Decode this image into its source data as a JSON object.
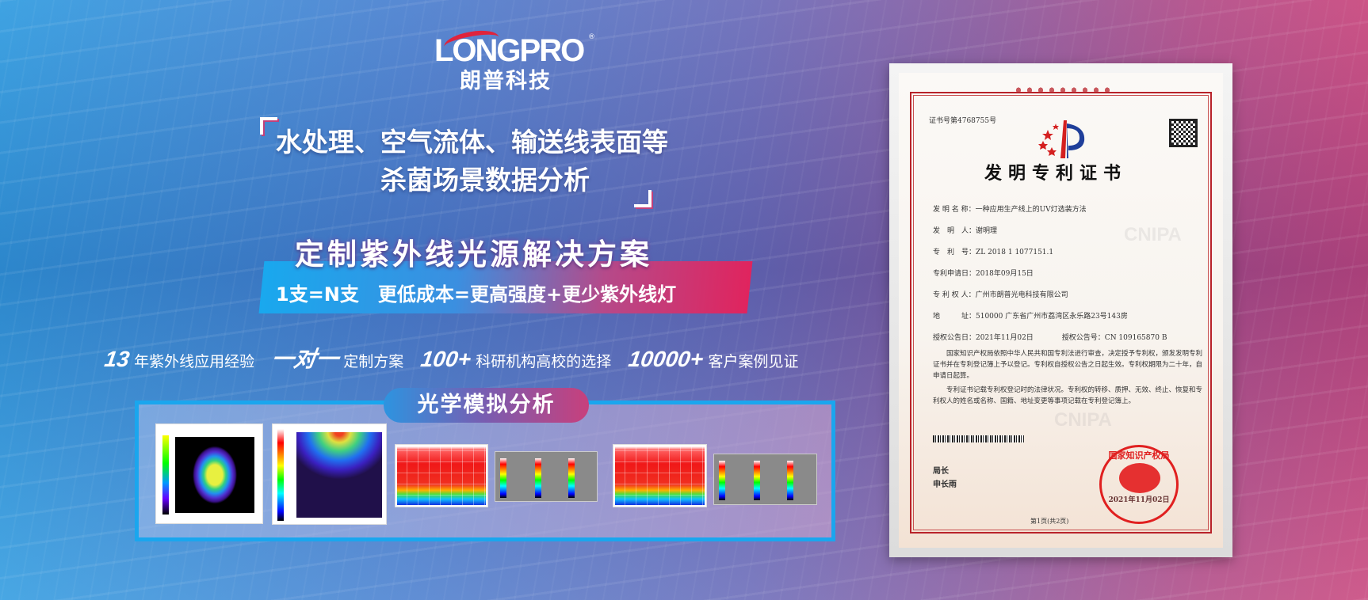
{
  "brand": {
    "name_en": "LONGPRO",
    "registered": "®",
    "name_cn": "朗普科技",
    "accent_red": "#e0233c"
  },
  "headline": {
    "line1": "水处理、空气流体、输送线表面等",
    "line2": "杀菌场景数据分析"
  },
  "banner": {
    "title": "定制紫外线光源解决方案",
    "subtitle": "1支=N支　更低成本=更高强度+更少紫外线灯",
    "colors": [
      "#19a8ee",
      "#e0245e"
    ]
  },
  "stats": [
    {
      "value": "13",
      "label": "年紫外线应用经验"
    },
    {
      "value": "一对一",
      "label": "定制方案"
    },
    {
      "value": "100+",
      "label": "科研机构高校的选择"
    },
    {
      "value": "10000+",
      "label": "客户案例见证"
    }
  ],
  "simulation": {
    "title": "光学模拟分析",
    "images": [
      "irradiance-map-circular",
      "irradiance-map-scatter",
      "heatmap-red-1",
      "color-legends-1",
      "heatmap-red-2",
      "color-legends-2"
    ]
  },
  "certificate": {
    "cert_no": "证书号第4768755号",
    "title": "发明专利证书",
    "watermark": "CNIPA",
    "rows": [
      "发 明 名 称：一种应用生产线上的UV灯选装方法",
      "发　明　人：谢明理",
      "专　利　号：ZL 2018 1 1077151.1",
      "专利申请日：2018年09月15日",
      "专 利 权 人：广州市朗普光电科技有限公司",
      "地　　　址：510000 广东省广州市荔湾区永乐路23号143房",
      "授权公告日：2021年11月02日　　　　授权公告号：CN 109165870 B"
    ],
    "paragraph1": "国家知识产权局依照中华人民共和国专利法进行审查，决定授予专利权，颁发发明专利证书并在专利登记簿上予以登记。专利权自授权公告之日起生效。专利权期限为二十年，自申请日起算。",
    "paragraph2": "专利证书记载专利权登记时的法律状况。专利权的转移、质押、无效、终止、恢复和专利权人的姓名或名称、国籍、地址变更等事项记载在专利登记簿上。",
    "director_title": "局长",
    "director_name": "申长雨",
    "signature": "申长雨",
    "seal_text": "国家知识产权局",
    "seal_date": "2021年11月02日",
    "page": "第1页(共2页)"
  }
}
